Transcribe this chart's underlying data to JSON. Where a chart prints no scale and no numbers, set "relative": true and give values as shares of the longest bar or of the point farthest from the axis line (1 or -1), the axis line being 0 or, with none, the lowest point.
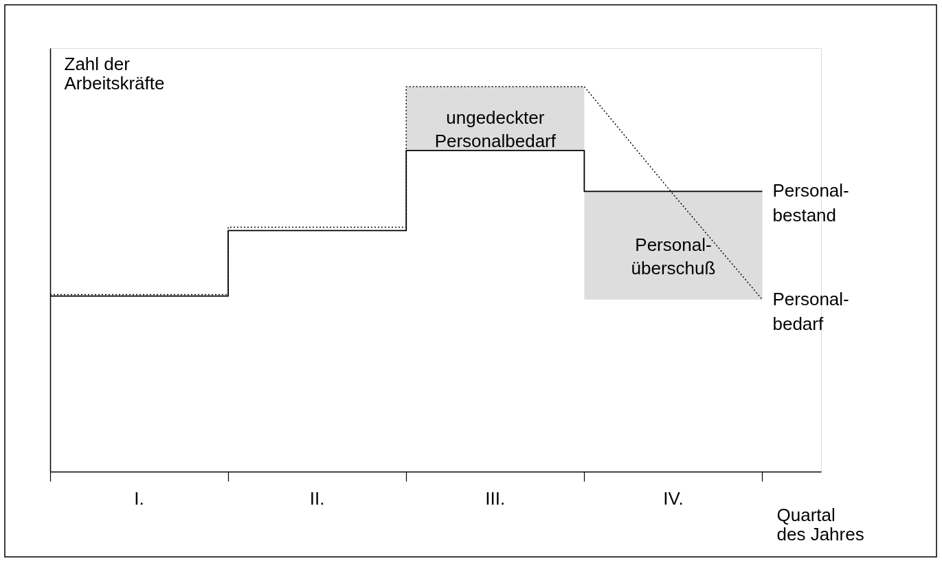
{
  "chart_data": {
    "type": "line",
    "relative": true,
    "ylabel": "Zahl der\nArbeitskräfte",
    "xlabel": "Quartal\ndes Jahres",
    "categories": [
      null,
      "I.",
      null,
      "II.",
      null,
      "III.",
      null,
      "IV.",
      null
    ],
    "series": [
      {
        "type": "step",
        "color": "#000000",
        "values": [
          0.46,
          0.46,
          0.635,
          0.635,
          1.0,
          1.0,
          1.0,
          null,
          null
        ],
        "line_style": "dotted"
      },
      {
        "name": "Personal-\nbedarf",
        "color": "#000000",
        "values": [
          null,
          null,
          null,
          null,
          null,
          null,
          1.0,
          0.72,
          0.447
        ],
        "line_style": "dotted"
      },
      {
        "type": "step",
        "name": "Personal-\nbestand",
        "color": "#000000",
        "values": [
          0.456,
          0.456,
          0.626,
          0.626,
          0.834,
          0.834,
          0.728,
          0.728,
          0.728
        ],
        "line_style": "solid",
        "lower": [
          null,
          null,
          null,
          null,
          0.834,
          0.834,
          0.447,
          0.447,
          0.447
        ],
        "upper": [
          null,
          null,
          null,
          null,
          1.0,
          1.0,
          0.728,
          0.728,
          0.728
        ]
      }
    ],
    "annotations": [
      "ungedeckter\nPersonalbedarf",
      "Personal-\nüberschuß"
    ],
    "grid": false
  }
}
